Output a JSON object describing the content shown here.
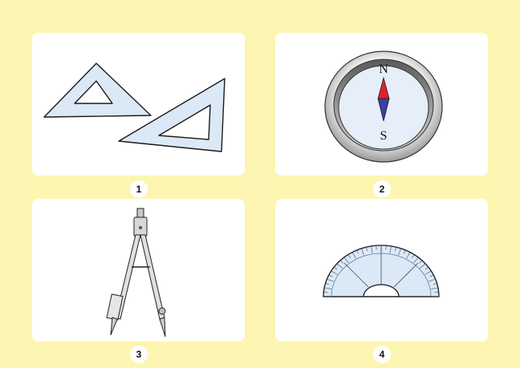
{
  "items": [
    {
      "number": "1",
      "icon": "set-squares-icon"
    },
    {
      "number": "2",
      "icon": "compass-icon",
      "north_label": "N",
      "south_label": "S"
    },
    {
      "number": "3",
      "icon": "drawing-compass-icon"
    },
    {
      "number": "4",
      "icon": "protractor-icon"
    }
  ],
  "colors": {
    "background": "#fdf6b2",
    "card": "#ffffff",
    "tool_fill": "#dbe8f6",
    "needle_north": "#e0202c",
    "needle_south": "#3b3f9e"
  }
}
